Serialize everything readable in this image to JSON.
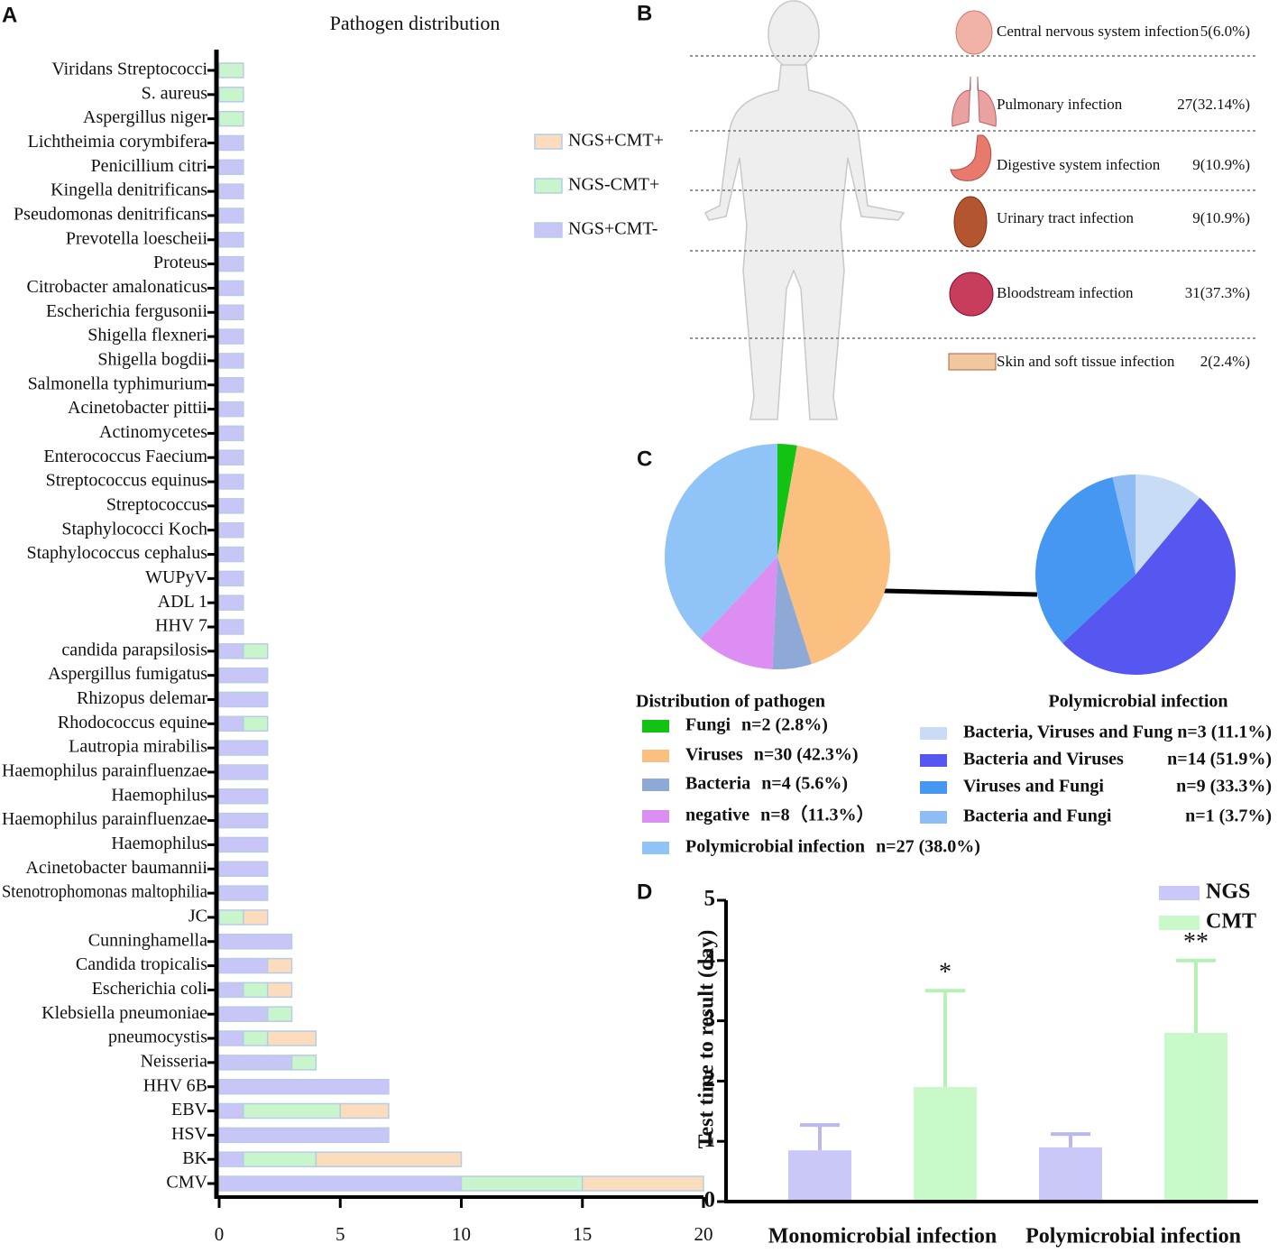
{
  "panel_labels": [
    "A",
    "B",
    "C",
    "D"
  ],
  "infection_sites": {
    "rows": [
      {
        "label": "Central nervous system infection",
        "value": "5(6.0%)"
      },
      {
        "label": "Pulmonary infection",
        "value": "27(32.14%)"
      },
      {
        "label": "Digestive system infection",
        "value": "9(10.9%)"
      },
      {
        "label": "Urinary tract infection",
        "value": "9(10.9%)"
      },
      {
        "label": "Bloodstream infection",
        "value": "31(37.3%)"
      },
      {
        "label": "Skin and soft tissue infection",
        "value": "2(2.4%)"
      }
    ]
  },
  "chart_data": [
    {
      "type": "bar",
      "orientation": "horizontal",
      "stacked": true,
      "title": "Pathogen distribution",
      "categories": [
        "Viridans Streptococci",
        "S. aureus",
        "Aspergillus niger",
        "Lichtheimia corymbifera",
        "Penicillium citri",
        "Kingella denitrificans",
        "Pseudomonas denitrificans",
        "Prevotella loescheii",
        "Proteus",
        "Citrobacter amalonaticus",
        "Escherichia fergusonii",
        "Shigella flexneri",
        "Shigella bogdii",
        "Salmonella typhimurium",
        "Acinetobacter pittii",
        "Actinomycetes",
        "Enterococcus Faecium",
        "Streptococcus equinus",
        "Streptococcus",
        "Staphylococci Koch",
        "Staphylococcus cephalus",
        "WUPyV",
        "ADL 1",
        "HHV 7",
        "candida parapsilosis",
        "Aspergillus fumigatus",
        "Rhizopus delemar",
        "Rhodococcus equine",
        "Lautropia mirabilis",
        "Haemophilus parainfluenzae",
        "Haemophilus",
        "Haemophilus parainfluenzae",
        "Haemophilus",
        "Acinetobacter baumannii",
        "Stenotrophomonas maltophilia",
        "JC",
        "Cunninghamella",
        "Candida tropicalis",
        "Escherichia coli",
        "Klebsiella pneumoniae",
        "pneumocystis",
        "Neisseria",
        "HHV 6B",
        "EBV",
        "HSV",
        "BK",
        "CMV"
      ],
      "series": [
        {
          "name": "NGS+CMT+",
          "color": "#fbdcbc",
          "values": [
            0,
            0,
            0,
            0,
            0,
            0,
            0,
            0,
            0,
            0,
            0,
            0,
            0,
            0,
            0,
            0,
            0,
            0,
            0,
            0,
            0,
            0,
            0,
            0,
            0,
            0,
            0,
            0,
            0,
            0,
            0,
            0,
            0,
            0,
            0,
            1,
            0,
            1,
            1,
            0,
            2,
            0,
            0,
            2,
            0,
            6,
            5
          ]
        },
        {
          "name": "NGS-CMT+",
          "color": "#c9f5cc",
          "values": [
            1,
            1,
            1,
            0,
            0,
            0,
            0,
            0,
            0,
            0,
            0,
            0,
            0,
            0,
            0,
            0,
            0,
            0,
            0,
            0,
            0,
            0,
            0,
            0,
            1,
            0,
            0,
            1,
            0,
            0,
            0,
            0,
            0,
            0,
            0,
            1,
            0,
            0,
            1,
            1,
            1,
            1,
            0,
            4,
            0,
            3,
            5
          ]
        },
        {
          "name": "NGS+CMT-",
          "color": "#c8c6f7",
          "values": [
            0,
            0,
            0,
            1,
            1,
            1,
            1,
            1,
            1,
            1,
            1,
            1,
            1,
            1,
            1,
            1,
            1,
            1,
            1,
            1,
            1,
            1,
            1,
            1,
            1,
            2,
            2,
            1,
            2,
            2,
            2,
            2,
            2,
            2,
            2,
            0,
            3,
            2,
            1,
            2,
            1,
            3,
            7,
            1,
            7,
            1,
            10
          ]
        }
      ],
      "xlim": [
        0,
        20
      ],
      "xticks": [
        0,
        5,
        10,
        15,
        20
      ]
    },
    {
      "type": "pie",
      "title": "Distribution of pathogen",
      "categories": [
        "Fungi",
        "Viruses",
        "Bacteria",
        "negative",
        "Polymicrobial infection"
      ],
      "values": [
        2.8,
        42.3,
        5.6,
        11.3,
        38.0
      ],
      "value_labels": [
        "n=2 (2.8%)",
        "n=30 (42.3%)",
        "n=4 (5.6%)",
        "n=8（11.3%）",
        "n=27 (38.0%)"
      ],
      "colors": [
        "#13c313",
        "#fbc080",
        "#8ea9d6",
        "#dd8ef2",
        "#90c3f7"
      ]
    },
    {
      "type": "pie",
      "title": "Polymicrobial infection",
      "categories": [
        "Bacteria, Viruses and Fung",
        "Bacteria and Viruses",
        "Viruses and Fungi",
        "Bacteria and Fungi"
      ],
      "values": [
        11.1,
        51.9,
        33.3,
        3.7
      ],
      "value_labels": [
        "n=3 (11.1%)",
        "n=14 (51.9%)",
        "n=9 (33.3%)",
        "n=1 (3.7%)"
      ],
      "colors": [
        "#c9dcf5",
        "#5656f0",
        "#4597f2",
        "#8ebcf5"
      ]
    },
    {
      "type": "bar",
      "orientation": "vertical",
      "stacked": false,
      "y_label": "Test time to result (day)",
      "categories": [
        "Monomicrobial infection",
        "Polymicrobial infection"
      ],
      "series": [
        {
          "name": "NGS",
          "color": "#c9c8f9",
          "values": [
            0.85,
            0.9
          ],
          "errors": [
            0.42,
            0.22
          ]
        },
        {
          "name": "CMT",
          "color": "#c9f9c9",
          "values": [
            1.9,
            2.8
          ],
          "errors": [
            1.6,
            1.2
          ]
        }
      ],
      "annotations": [
        {
          "series": 1,
          "category": 0,
          "text": "*"
        },
        {
          "series": 1,
          "category": 1,
          "text": "**"
        }
      ],
      "ylim": [
        0,
        5
      ],
      "yticks": [
        0,
        1,
        2,
        3,
        4,
        5
      ]
    }
  ]
}
